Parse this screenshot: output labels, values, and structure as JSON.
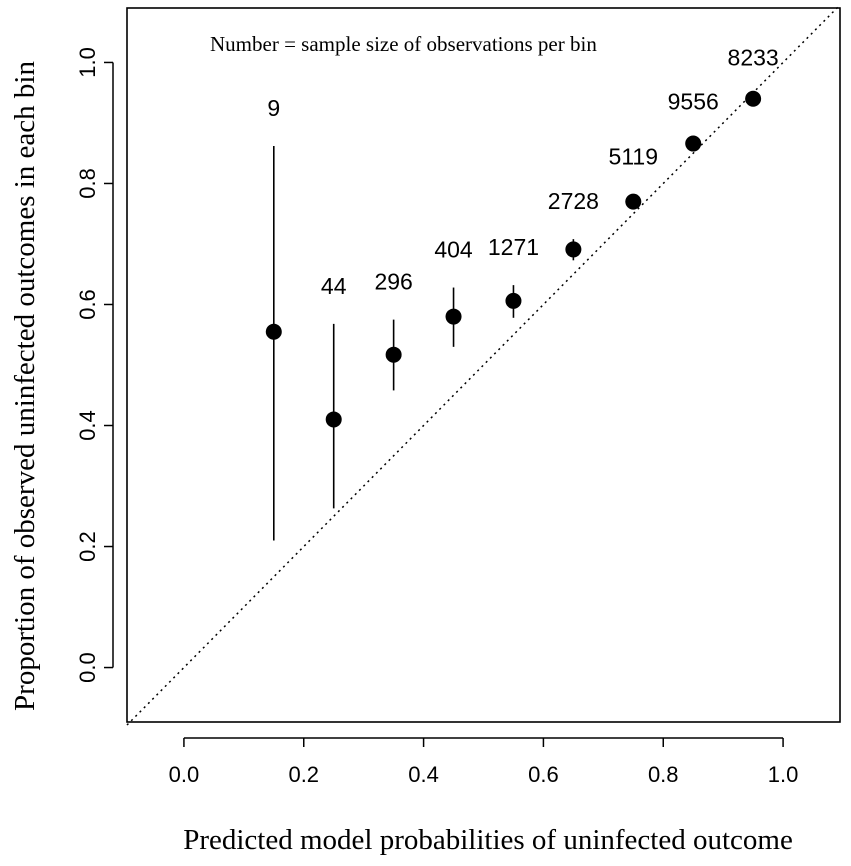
{
  "chart_data": {
    "type": "scatter",
    "title": "",
    "xlabel": "Predicted model probabilities of uninfected outcome",
    "ylabel": "Proportion of observed uninfected outcomes in each bin",
    "annotation": "Number = sample size of observations per bin",
    "xlim": [
      -0.095,
      1.095
    ],
    "ylim": [
      -0.09,
      1.09
    ],
    "x_ticks": [
      0.0,
      0.2,
      0.4,
      0.6,
      0.8,
      1.0
    ],
    "x_tick_labels": [
      "0.0",
      "0.2",
      "0.4",
      "0.6",
      "0.8",
      "1.0"
    ],
    "y_ticks": [
      0.0,
      0.2,
      0.4,
      0.6,
      0.8,
      1.0
    ],
    "y_tick_labels": [
      "0.0",
      "0.2",
      "0.4",
      "0.6",
      "0.8",
      "1.0"
    ],
    "reference_line": {
      "style": "dotted",
      "from": [
        -0.095,
        -0.095
      ],
      "to": [
        1.095,
        1.095
      ]
    },
    "points": [
      {
        "x": 0.15,
        "y": 0.555,
        "lower": 0.21,
        "upper": 0.862,
        "n": "9"
      },
      {
        "x": 0.25,
        "y": 0.41,
        "lower": 0.263,
        "upper": 0.568,
        "n": "44"
      },
      {
        "x": 0.35,
        "y": 0.517,
        "lower": 0.458,
        "upper": 0.575,
        "n": "296"
      },
      {
        "x": 0.45,
        "y": 0.58,
        "lower": 0.53,
        "upper": 0.628,
        "n": "404"
      },
      {
        "x": 0.55,
        "y": 0.606,
        "lower": 0.578,
        "upper": 0.632,
        "n": "1271"
      },
      {
        "x": 0.65,
        "y": 0.691,
        "lower": 0.673,
        "upper": 0.708,
        "n": "2728"
      },
      {
        "x": 0.75,
        "y": 0.77,
        "lower": 0.758,
        "upper": 0.782,
        "n": "5119"
      },
      {
        "x": 0.85,
        "y": 0.866,
        "lower": 0.859,
        "upper": 0.873,
        "n": "9556"
      },
      {
        "x": 0.95,
        "y": 0.94,
        "lower": 0.935,
        "upper": 0.945,
        "n": "8233"
      }
    ]
  }
}
